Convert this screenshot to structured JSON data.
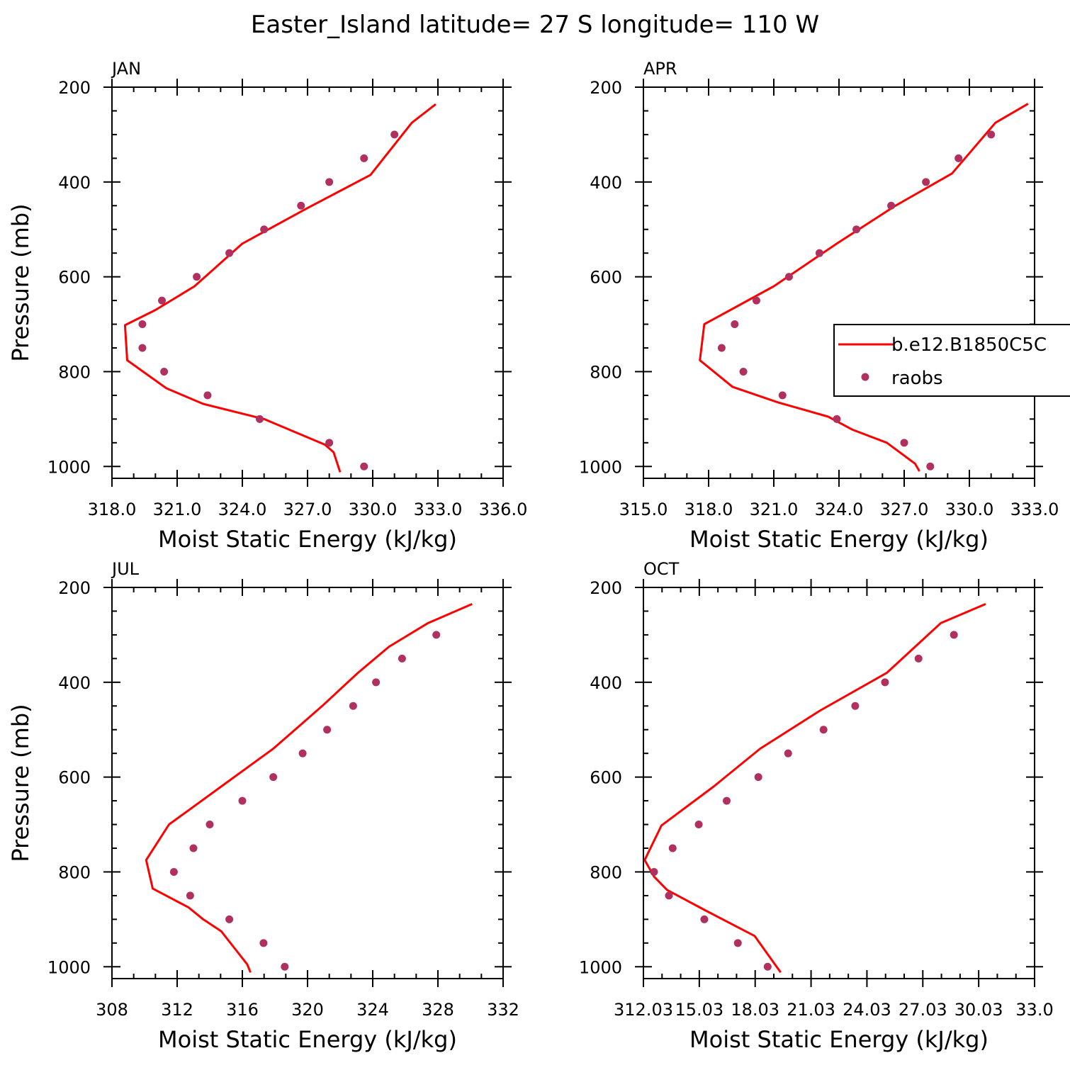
{
  "figure": {
    "title": "Easter_Island  latitude= 27 S longitude= 110 W"
  },
  "colors": {
    "model_line": "#ff0000",
    "obs_marker": "#b03060",
    "axis": "#000000"
  },
  "legend": {
    "model_label": "b.e12.B1850C5C",
    "obs_label": "raobs",
    "placement": "right, inside APR panel"
  },
  "chart_data": [
    {
      "type": "line",
      "panel": "JAN",
      "xlabel": "Moist Static Energy (kJ/kg)",
      "ylabel": "Pressure (mb)",
      "xlim": [
        318,
        336
      ],
      "ylim": [
        1025,
        200
      ],
      "y_inverted": true,
      "xticks": [
        "318.0",
        "321.0",
        "324.0",
        "327.0",
        "330.0",
        "333.0",
        "336.0"
      ],
      "yticks": [
        "200",
        "400",
        "600",
        "800",
        "1000"
      ],
      "series": [
        {
          "name": "b.e12.B1850C5C",
          "style": "line",
          "x": [
            332.9,
            331.8,
            329.9,
            327.0,
            324.0,
            321.8,
            320.0,
            318.6,
            318.7,
            320.5,
            322.2,
            325.0,
            327.8,
            328.2,
            328.5
          ],
          "y": [
            236,
            275,
            385,
            455,
            530,
            620,
            670,
            702,
            776,
            835,
            868,
            900,
            954,
            970,
            1012
          ]
        },
        {
          "name": "raobs",
          "style": "markers",
          "x": [
            331.0,
            329.6,
            328.0,
            326.7,
            325.0,
            323.4,
            321.9,
            320.3,
            319.4,
            319.4,
            320.4,
            322.4,
            324.8,
            328.0,
            329.6
          ],
          "y": [
            300,
            350,
            400,
            450,
            500,
            550,
            600,
            650,
            700,
            750,
            800,
            850,
            900,
            950,
            1000
          ]
        }
      ]
    },
    {
      "type": "line",
      "panel": "APR",
      "xlabel": "Moist Static Energy (kJ/kg)",
      "ylabel": "",
      "xlim": [
        315,
        333
      ],
      "ylim": [
        1025,
        200
      ],
      "y_inverted": true,
      "xticks": [
        "315.0",
        "318.0",
        "321.0",
        "324.0",
        "327.0",
        "330.0",
        "333.0"
      ],
      "yticks": [
        "200",
        "400",
        "600",
        "800",
        "1000"
      ],
      "series": [
        {
          "name": "b.e12.B1850C5C",
          "style": "line",
          "x": [
            332.7,
            331.2,
            329.2,
            326.6,
            323.9,
            321.0,
            319.0,
            317.8,
            317.6,
            319.1,
            321.2,
            323.5,
            324.6,
            326.2,
            327.5,
            327.7
          ],
          "y": [
            235,
            275,
            382,
            450,
            530,
            620,
            670,
            700,
            776,
            832,
            865,
            895,
            922,
            950,
            994,
            1010
          ]
        },
        {
          "name": "raobs",
          "style": "markers",
          "x": [
            331.0,
            329.5,
            328.0,
            326.4,
            324.8,
            323.1,
            321.7,
            320.2,
            319.2,
            318.6,
            319.6,
            321.4,
            323.9,
            327.0,
            328.2
          ],
          "y": [
            300,
            350,
            400,
            450,
            500,
            550,
            600,
            650,
            700,
            750,
            800,
            850,
            900,
            950,
            1000
          ]
        }
      ]
    },
    {
      "type": "line",
      "panel": "JUL",
      "xlabel": "Moist Static Energy (kJ/kg)",
      "ylabel": "Pressure (mb)",
      "xlim": [
        308,
        332
      ],
      "ylim": [
        1025,
        200
      ],
      "y_inverted": true,
      "xticks": [
        "308",
        "312",
        "316",
        "320",
        "324",
        "328",
        "332"
      ],
      "yticks": [
        "200",
        "400",
        "600",
        "800",
        "1000"
      ],
      "series": [
        {
          "name": "b.e12.B1850C5C",
          "style": "line",
          "x": [
            330.1,
            327.4,
            325.0,
            323.1,
            320.9,
            317.9,
            314.7,
            313.1,
            311.5,
            310.1,
            310.5,
            312.7,
            313.6,
            314.7,
            315.5,
            316.3,
            316.5
          ],
          "y": [
            235,
            275,
            325,
            380,
            450,
            540,
            620,
            660,
            700,
            775,
            835,
            875,
            900,
            925,
            960,
            995,
            1012
          ]
        },
        {
          "name": "raobs",
          "style": "markers",
          "x": [
            327.9,
            325.8,
            324.2,
            322.8,
            321.2,
            319.7,
            317.9,
            316.0,
            314.0,
            313.0,
            311.8,
            312.8,
            315.2,
            317.3,
            318.6
          ],
          "y": [
            300,
            350,
            400,
            450,
            500,
            550,
            600,
            650,
            700,
            750,
            800,
            850,
            900,
            950,
            1000
          ]
        }
      ]
    },
    {
      "type": "line",
      "panel": "OCT",
      "xlabel": "Moist Static Energy (kJ/kg)",
      "ylabel": "",
      "xlim": [
        312.03,
        333.03
      ],
      "ylim": [
        1025,
        200
      ],
      "y_inverted": true,
      "xticks": [
        "312.03",
        "15.03",
        "18.03",
        "21.03",
        "24.03",
        "27.03",
        "30.03",
        "33.0"
      ],
      "yticks": [
        "200",
        "400",
        "600",
        "800",
        "1000"
      ],
      "series": [
        {
          "name": "b.e12.B1850C5C",
          "style": "line",
          "x": [
            330.4,
            328.0,
            325.1,
            321.5,
            318.3,
            315.8,
            313.0,
            312.1,
            312.6,
            313.3,
            315.3,
            318.0,
            319.0,
            319.4
          ],
          "y": [
            235,
            275,
            380,
            460,
            540,
            620,
            702,
            775,
            810,
            838,
            880,
            935,
            990,
            1012
          ]
        },
        {
          "name": "raobs",
          "style": "markers",
          "x": [
            328.7,
            326.8,
            325.0,
            323.4,
            321.7,
            319.8,
            318.2,
            316.5,
            315.0,
            313.6,
            312.6,
            313.4,
            315.3,
            317.1,
            318.7
          ],
          "y": [
            300,
            350,
            400,
            450,
            500,
            550,
            600,
            650,
            700,
            750,
            800,
            850,
            900,
            950,
            1000
          ]
        }
      ]
    }
  ]
}
